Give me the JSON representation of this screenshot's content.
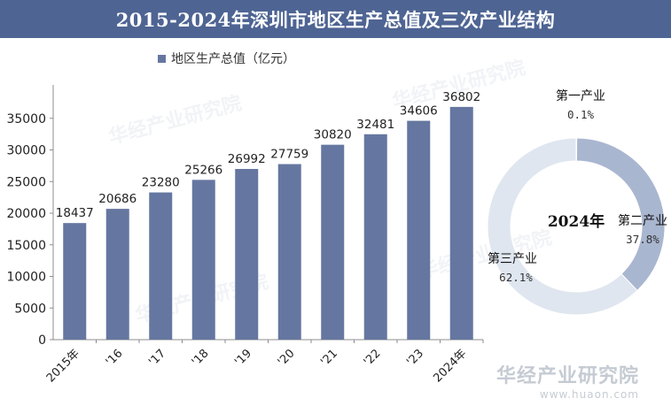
{
  "header": {
    "title": "2015-2024年深圳市地区生产总值及三次产业结构"
  },
  "legend": {
    "label": "地区生产总值（亿元）",
    "color": "#6577a0"
  },
  "chart_data": [
    {
      "type": "bar",
      "categories": [
        "2015年",
        "'16",
        "'17",
        "'18",
        "'19",
        "'20",
        "'21",
        "'22",
        "'23",
        "2024年"
      ],
      "series": [
        {
          "name": "地区生产总值（亿元）",
          "values": [
            18437,
            20686,
            23280,
            25266,
            26992,
            27759,
            30820,
            32481,
            34606,
            36802
          ]
        }
      ],
      "yticks": [
        "0",
        "5000",
        "10000",
        "15000",
        "20000",
        "25000",
        "30000",
        "35000"
      ],
      "ylim": [
        0,
        40000
      ],
      "grid": false,
      "bar_color": "#6577a0"
    },
    {
      "type": "pie",
      "center_label": "2024年",
      "slices": [
        {
          "name": "第一产业",
          "value": 0.1,
          "label": "0.1%",
          "color": "#6577a0"
        },
        {
          "name": "第二产业",
          "value": 37.8,
          "label": "37.8%",
          "color": "#a9b6d0"
        },
        {
          "name": "第三产业",
          "value": 62.1,
          "label": "62.1%",
          "color": "#dfe6f0"
        }
      ]
    }
  ],
  "watermark": {
    "brand_cn": "华经产业研究院",
    "brand_url": "www.huaon.com"
  }
}
